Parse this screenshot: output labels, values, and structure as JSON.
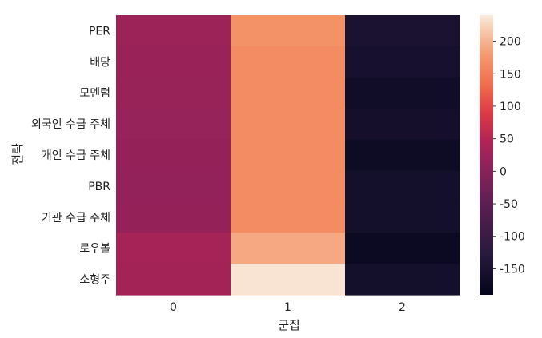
{
  "chart_data": {
    "type": "heatmap",
    "xlabel": "군집",
    "ylabel": "전략",
    "x_categories": [
      "0",
      "1",
      "2"
    ],
    "y_categories": [
      "PER",
      "배당",
      "모멘텀",
      "외국인 수급 주체",
      "개인 수급 주체",
      "PBR",
      "기관 수급 주체",
      "로우볼",
      "소형주"
    ],
    "values": [
      [
        22,
        170,
        -150
      ],
      [
        20,
        165,
        -155
      ],
      [
        18,
        165,
        -165
      ],
      [
        16,
        165,
        -158
      ],
      [
        14,
        165,
        -170
      ],
      [
        12,
        165,
        -160
      ],
      [
        14,
        165,
        -160
      ],
      [
        32,
        190,
        -175
      ],
      [
        30,
        235,
        -160
      ]
    ],
    "colorbar": {
      "vmin": -190,
      "vmax": 240,
      "ticks": [
        200,
        150,
        100,
        50,
        0,
        -50,
        -100,
        -150
      ],
      "tick_labels": [
        "200",
        "150",
        "100",
        "50",
        "0",
        "-50",
        "-100",
        "-150"
      ],
      "colormap": "rocket"
    }
  }
}
